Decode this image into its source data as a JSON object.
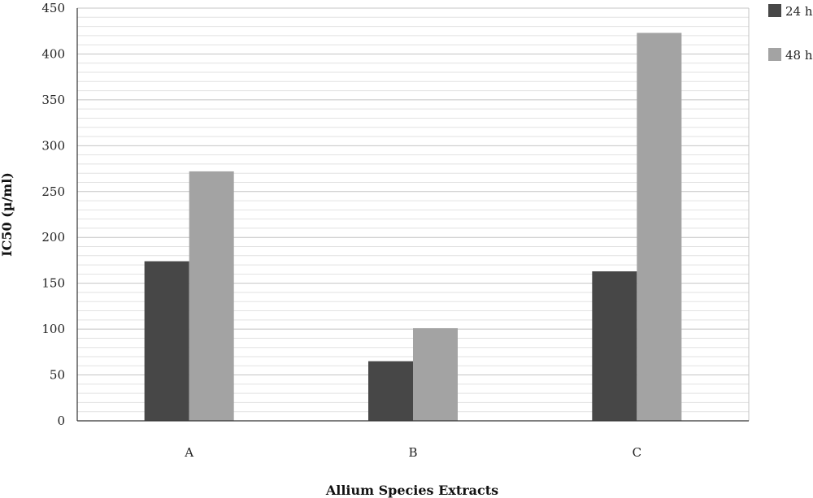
{
  "chart_data": {
    "type": "bar",
    "categories": [
      "A",
      "B",
      "C"
    ],
    "series": [
      {
        "name": "24 h",
        "values": [
          174,
          65,
          163
        ],
        "color": "#474747"
      },
      {
        "name": "48 h",
        "values": [
          272,
          101,
          423
        ],
        "color": "#a3a3a3"
      }
    ],
    "title": "",
    "xlabel": "Allium Species Extracts",
    "ylabel": "IC50 (µ/ml)",
    "ylim": [
      0,
      450
    ],
    "yticks": [
      0,
      50,
      100,
      150,
      200,
      250,
      300,
      350,
      400,
      450
    ],
    "grid": true,
    "legend": "top-right"
  }
}
